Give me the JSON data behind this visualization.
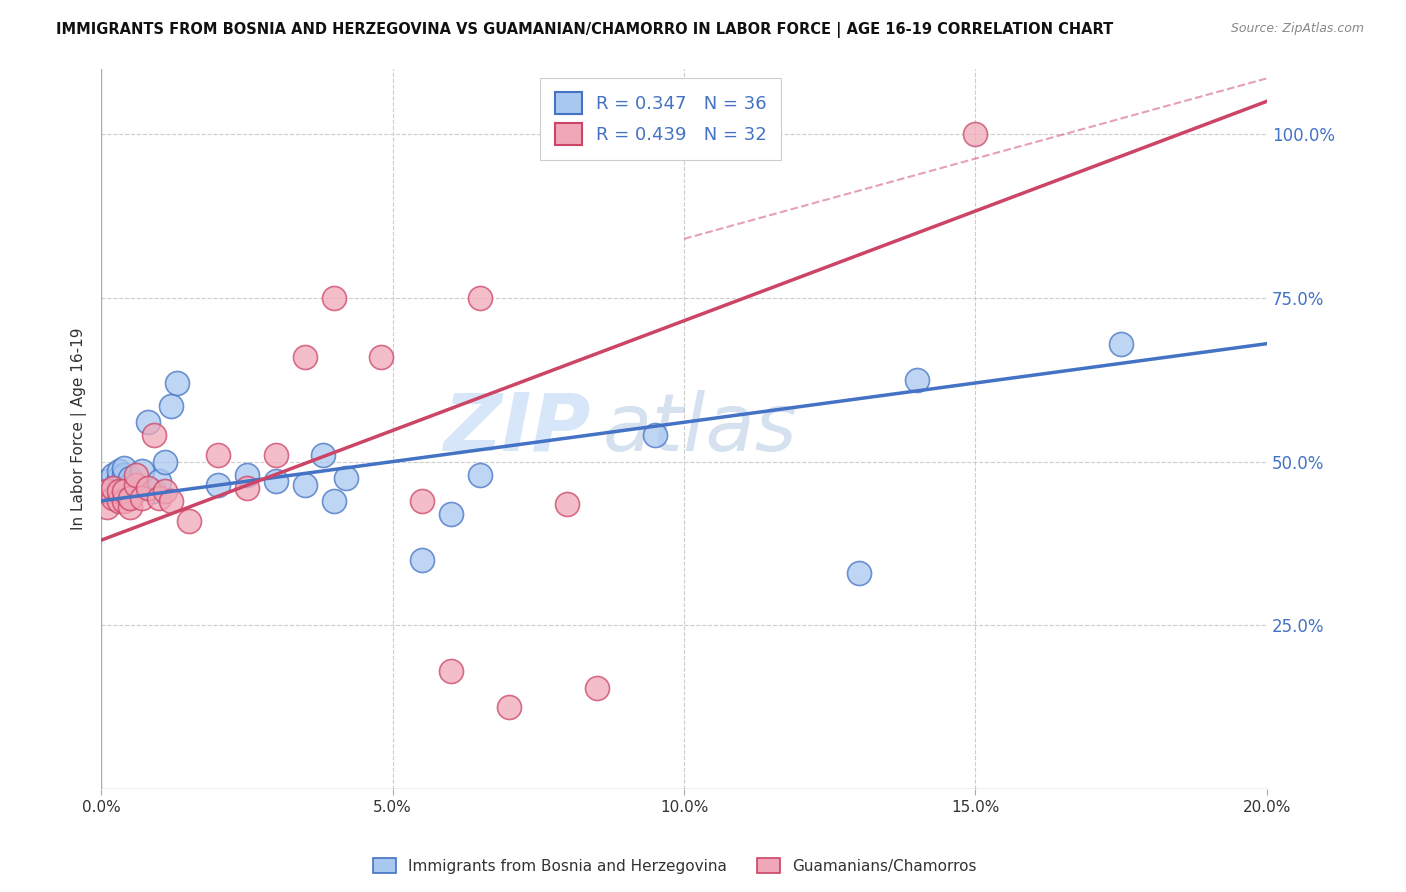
{
  "title": "IMMIGRANTS FROM BOSNIA AND HERZEGOVINA VS GUAMANIAN/CHAMORRO IN LABOR FORCE | AGE 16-19 CORRELATION CHART",
  "source": "Source: ZipAtlas.com",
  "ylabel": "In Labor Force | Age 16-19",
  "x_min": 0.0,
  "x_max": 0.2,
  "y_min": 0.0,
  "y_max": 1.1,
  "x_tick_labels": [
    "0.0%",
    "5.0%",
    "10.0%",
    "15.0%",
    "20.0%"
  ],
  "x_tick_vals": [
    0.0,
    0.05,
    0.1,
    0.15,
    0.2
  ],
  "y_tick_labels": [
    "25.0%",
    "50.0%",
    "75.0%",
    "100.0%"
  ],
  "y_tick_vals": [
    0.25,
    0.5,
    0.75,
    1.0
  ],
  "blue_R": 0.347,
  "blue_N": 36,
  "pink_R": 0.439,
  "pink_N": 32,
  "blue_fill_color": "#a8c8f0",
  "pink_fill_color": "#f0a8b8",
  "blue_edge_color": "#4472c4",
  "pink_edge_color": "#cc4466",
  "blue_line_color": "#4472c4",
  "pink_line_color": "#cc4466",
  "blue_scatter_x": [
    0.001,
    0.001,
    0.002,
    0.002,
    0.003,
    0.003,
    0.003,
    0.004,
    0.004,
    0.004,
    0.005,
    0.005,
    0.005,
    0.006,
    0.006,
    0.007,
    0.008,
    0.009,
    0.01,
    0.011,
    0.012,
    0.013,
    0.02,
    0.025,
    0.03,
    0.035,
    0.038,
    0.04,
    0.042,
    0.055,
    0.06,
    0.065,
    0.095,
    0.13,
    0.14,
    0.175
  ],
  "blue_scatter_y": [
    0.455,
    0.47,
    0.46,
    0.48,
    0.46,
    0.475,
    0.485,
    0.46,
    0.48,
    0.49,
    0.455,
    0.465,
    0.475,
    0.455,
    0.465,
    0.485,
    0.56,
    0.455,
    0.47,
    0.5,
    0.585,
    0.62,
    0.465,
    0.48,
    0.47,
    0.465,
    0.51,
    0.44,
    0.475,
    0.35,
    0.42,
    0.48,
    0.54,
    0.33,
    0.625,
    0.68
  ],
  "pink_scatter_x": [
    0.001,
    0.001,
    0.002,
    0.002,
    0.003,
    0.003,
    0.004,
    0.004,
    0.005,
    0.005,
    0.006,
    0.006,
    0.007,
    0.008,
    0.009,
    0.01,
    0.011,
    0.012,
    0.015,
    0.02,
    0.025,
    0.03,
    0.035,
    0.04,
    0.048,
    0.055,
    0.06,
    0.065,
    0.07,
    0.08,
    0.085,
    0.15
  ],
  "pink_scatter_y": [
    0.43,
    0.455,
    0.445,
    0.46,
    0.44,
    0.455,
    0.44,
    0.455,
    0.43,
    0.445,
    0.465,
    0.48,
    0.445,
    0.46,
    0.54,
    0.445,
    0.455,
    0.44,
    0.41,
    0.51,
    0.46,
    0.51,
    0.66,
    0.75,
    0.66,
    0.44,
    0.18,
    0.75,
    0.125,
    0.435,
    0.155,
    1.0
  ],
  "blue_trend_x": [
    0.0,
    0.2
  ],
  "blue_trend_y": [
    0.44,
    0.68
  ],
  "pink_trend_x": [
    0.0,
    0.2
  ],
  "pink_trend_y": [
    0.38,
    1.05
  ],
  "watermark_zip": "ZIP",
  "watermark_atlas": "atlas",
  "legend_label_blue": "Immigrants from Bosnia and Herzegovina",
  "legend_label_pink": "Guamanians/Chamorros",
  "background_color": "#ffffff",
  "grid_color": "#cccccc"
}
